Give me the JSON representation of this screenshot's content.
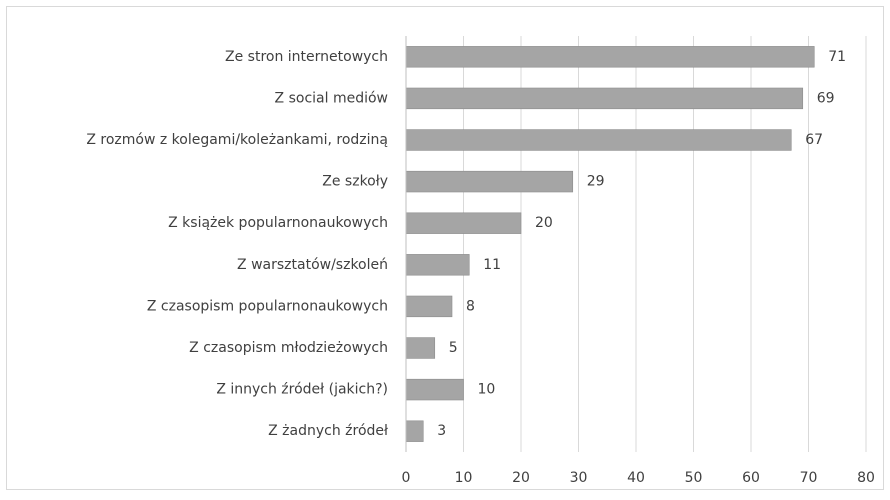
{
  "chart_data": {
    "type": "bar",
    "orientation": "horizontal",
    "categories": [
      "Ze stron internetowych",
      "Z social mediów",
      "Z rozmów z kolegami/koleżankami, rodziną",
      "Ze szkoły",
      "Z książek popularnonaukowych",
      "Z warsztatów/szkoleń",
      "Z czasopism popularnonaukowych",
      "Z czasopism młodzieżowych",
      "Z innych źródeł (jakich?)",
      "Z żadnych źródeł"
    ],
    "values": [
      71,
      69,
      67,
      29,
      20,
      11,
      8,
      5,
      10,
      3
    ],
    "color": "#a5a5a5",
    "xlim": [
      0,
      80
    ],
    "xticks": [
      0,
      10,
      20,
      30,
      40,
      50,
      60,
      70,
      80
    ],
    "grid": true
  }
}
